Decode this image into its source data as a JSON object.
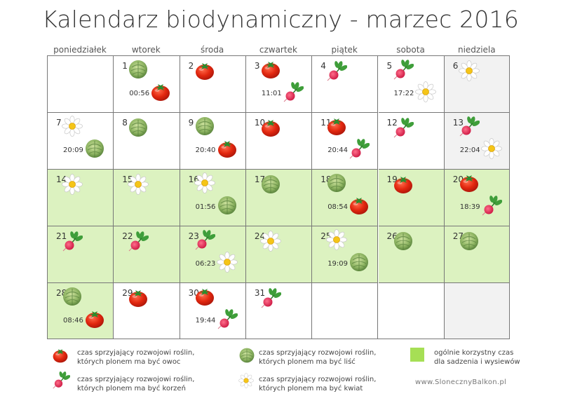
{
  "title": "Kalendarz biodynamiczny - marzec 2016",
  "days": [
    "poniedziałek",
    "wtorek",
    "środa",
    "czwartek",
    "piątek",
    "sobota",
    "niedziela"
  ],
  "colors": {
    "green_cell": "#dcf2c0",
    "grey_cell": "#f2f2f2",
    "legend_green": "#a6df55"
  },
  "cells": [
    {
      "day": "",
      "bg": "white",
      "time": "",
      "icons": []
    },
    {
      "day": "1",
      "bg": "white",
      "time": "00:56",
      "icons": [
        "leaf",
        "fruit"
      ]
    },
    {
      "day": "2",
      "bg": "white",
      "time": "",
      "icons": [
        "fruit"
      ]
    },
    {
      "day": "3",
      "bg": "white",
      "time": "11:01",
      "icons": [
        "fruit",
        "root"
      ]
    },
    {
      "day": "4",
      "bg": "white",
      "time": "",
      "icons": [
        "root"
      ]
    },
    {
      "day": "5",
      "bg": "white",
      "time": "17:22",
      "icons": [
        "root",
        "flower"
      ]
    },
    {
      "day": "6",
      "bg": "grey",
      "time": "",
      "icons": [
        "flower"
      ]
    },
    {
      "day": "7",
      "bg": "white",
      "time": "20:09",
      "icons": [
        "flower",
        "leaf"
      ]
    },
    {
      "day": "8",
      "bg": "white",
      "time": "",
      "icons": [
        "leaf"
      ]
    },
    {
      "day": "9",
      "bg": "white",
      "time": "20:40",
      "icons": [
        "leaf",
        "fruit"
      ]
    },
    {
      "day": "10",
      "bg": "white",
      "time": "",
      "icons": [
        "fruit"
      ]
    },
    {
      "day": "11",
      "bg": "white",
      "time": "20:44",
      "icons": [
        "fruit",
        "root"
      ]
    },
    {
      "day": "12",
      "bg": "white",
      "time": "",
      "icons": [
        "root"
      ]
    },
    {
      "day": "13",
      "bg": "grey",
      "time": "22:04",
      "icons": [
        "root",
        "flower"
      ]
    },
    {
      "day": "14",
      "bg": "green",
      "time": "",
      "icons": [
        "flower"
      ]
    },
    {
      "day": "15",
      "bg": "green",
      "time": "",
      "icons": [
        "flower"
      ]
    },
    {
      "day": "16",
      "bg": "green",
      "time": "01:56",
      "icons": [
        "flower",
        "leaf"
      ]
    },
    {
      "day": "17",
      "bg": "green",
      "time": "",
      "icons": [
        "leaf"
      ]
    },
    {
      "day": "18",
      "bg": "green",
      "time": "08:54",
      "icons": [
        "leaf",
        "fruit"
      ]
    },
    {
      "day": "19",
      "bg": "green",
      "time": "",
      "icons": [
        "fruit"
      ]
    },
    {
      "day": "20",
      "bg": "green",
      "time": "18:39",
      "icons": [
        "fruit",
        "root"
      ]
    },
    {
      "day": "21",
      "bg": "green",
      "time": "",
      "icons": [
        "root"
      ]
    },
    {
      "day": "22",
      "bg": "green",
      "time": "",
      "icons": [
        "root"
      ]
    },
    {
      "day": "23",
      "bg": "green",
      "time": "06:23",
      "icons": [
        "root",
        "flower"
      ]
    },
    {
      "day": "24",
      "bg": "green",
      "time": "",
      "icons": [
        "flower"
      ]
    },
    {
      "day": "25",
      "bg": "green",
      "time": "19:09",
      "icons": [
        "flower",
        "leaf"
      ]
    },
    {
      "day": "26",
      "bg": "green",
      "time": "",
      "icons": [
        "leaf"
      ]
    },
    {
      "day": "27",
      "bg": "green",
      "time": "",
      "icons": [
        "leaf"
      ]
    },
    {
      "day": "28",
      "bg": "green",
      "time": "08:46",
      "icons": [
        "leaf",
        "fruit"
      ]
    },
    {
      "day": "29",
      "bg": "white",
      "time": "",
      "icons": [
        "fruit"
      ]
    },
    {
      "day": "30",
      "bg": "white",
      "time": "19:44",
      "icons": [
        "fruit",
        "root"
      ]
    },
    {
      "day": "31",
      "bg": "white",
      "time": "",
      "icons": [
        "root"
      ]
    },
    {
      "day": "",
      "bg": "white",
      "time": "",
      "icons": []
    },
    {
      "day": "",
      "bg": "white",
      "time": "",
      "icons": []
    },
    {
      "day": "",
      "bg": "grey",
      "time": "",
      "icons": []
    }
  ],
  "legend": {
    "fruit": {
      "line1": "czas sprzyjający rozwojowi roślin,",
      "line2": "których plonem ma być owoc"
    },
    "root": {
      "line1": "czas sprzyjający rozwojowi roślin,",
      "line2": "których plonem ma być korzeń"
    },
    "leaf": {
      "line1": "czas sprzyjający rozwojowi roślin,",
      "line2": "których plonem ma być liść"
    },
    "flower": {
      "line1": "czas sprzyjający rozwojowi roślin,",
      "line2": "których plonem ma być kwiat"
    },
    "green": {
      "line1": "ogólnie korzystny czas",
      "line2": "dla sadzenia i wysiewów"
    }
  },
  "website": "www.SlonecznyBalkon.pl"
}
